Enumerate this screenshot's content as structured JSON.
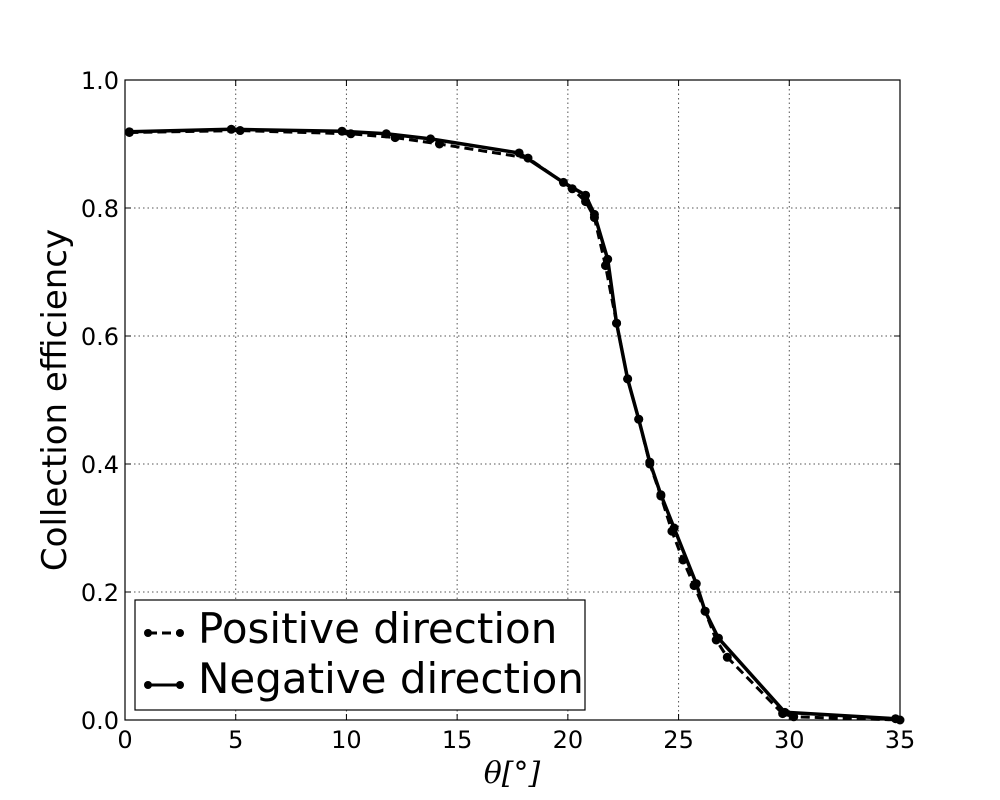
{
  "chart_data": {
    "type": "line",
    "title": "",
    "xlabel": "θ[°]",
    "ylabel": "Collection efficiency",
    "xlim": [
      0,
      35
    ],
    "ylim": [
      0,
      1.0
    ],
    "xticks": [
      0,
      5,
      10,
      15,
      20,
      25,
      30,
      35
    ],
    "yticks": [
      0.0,
      0.2,
      0.4,
      0.6,
      0.8,
      1.0
    ],
    "xtick_labels": [
      "0",
      "5",
      "10",
      "15",
      "20",
      "25",
      "30",
      "35"
    ],
    "ytick_labels": [
      "0.0",
      "0.2",
      "0.4",
      "0.6",
      "0.8",
      "1.0"
    ],
    "grid": true,
    "legend": "bottom-left",
    "series": [
      {
        "name": "Positive direction",
        "style": "dashed",
        "color": "#000000",
        "x": [
          0.2,
          5.2,
          10.2,
          12.2,
          14.2,
          18.2,
          20.2,
          20.8,
          21.2,
          21.7,
          22.2,
          22.7,
          23.2,
          23.7,
          24.2,
          24.7,
          25.2,
          25.7,
          26.2,
          26.7,
          27.2,
          29.7,
          30.2,
          35.0
        ],
        "y": [
          0.918,
          0.921,
          0.916,
          0.91,
          0.9,
          0.878,
          0.83,
          0.81,
          0.785,
          0.71,
          0.62,
          0.533,
          0.47,
          0.4,
          0.35,
          0.295,
          0.25,
          0.21,
          0.17,
          0.125,
          0.098,
          0.01,
          0.005,
          0.0
        ]
      },
      {
        "name": "Negative direction",
        "style": "solid",
        "color": "#000000",
        "x": [
          0.2,
          4.8,
          9.8,
          11.8,
          13.8,
          17.8,
          19.8,
          20.8,
          21.2,
          21.8,
          22.2,
          22.7,
          23.2,
          23.7,
          24.2,
          24.8,
          25.8,
          26.2,
          26.8,
          29.8,
          34.8
        ],
        "y": [
          0.919,
          0.923,
          0.92,
          0.916,
          0.908,
          0.886,
          0.84,
          0.82,
          0.79,
          0.72,
          0.62,
          0.533,
          0.47,
          0.403,
          0.352,
          0.3,
          0.213,
          0.17,
          0.128,
          0.012,
          0.002
        ]
      }
    ]
  }
}
